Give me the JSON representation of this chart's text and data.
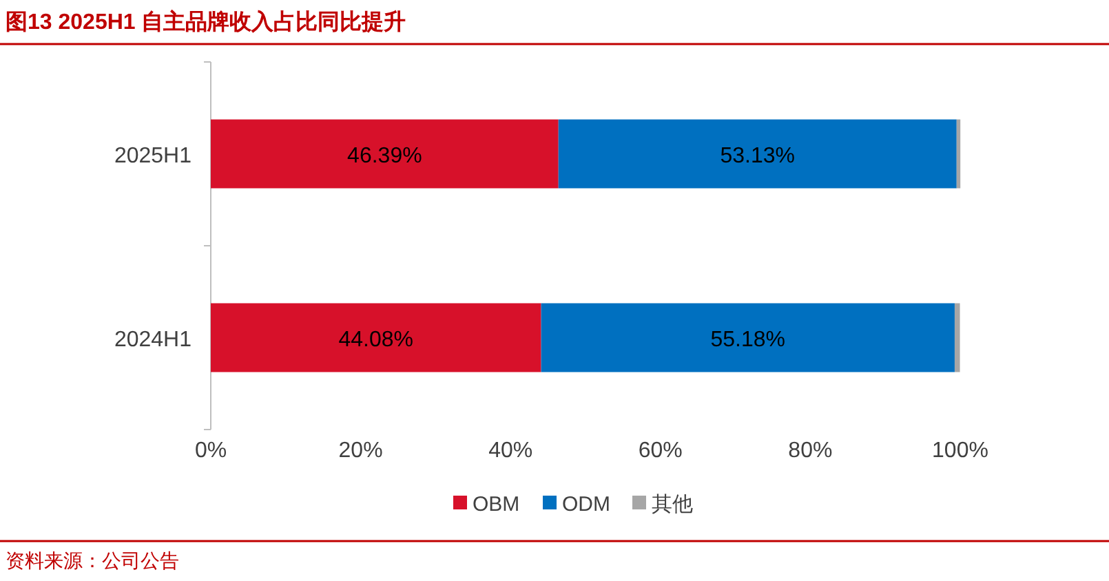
{
  "chart_data": {
    "type": "bar",
    "orientation": "horizontal",
    "stacked": true,
    "title": "图13  2025H1 自主品牌收入占比同比提升",
    "categories": [
      "2025H1",
      "2024H1"
    ],
    "series": [
      {
        "name": "OBM",
        "color": "#d7112a",
        "values": [
          46.39,
          44.08
        ],
        "value_labels": [
          "46.39%",
          "44.08%"
        ]
      },
      {
        "name": "ODM",
        "color": "#0070c0",
        "values": [
          53.13,
          55.18
        ],
        "value_labels": [
          "53.13%",
          "55.18%"
        ]
      },
      {
        "name": "其他",
        "color": "#a6a6a6",
        "values": [
          0.5,
          0.7
        ]
      }
    ],
    "xlim": [
      0,
      100
    ],
    "xticks": [
      {
        "value": 0,
        "label": "0%"
      },
      {
        "value": 20,
        "label": "20%"
      },
      {
        "value": 40,
        "label": "40%"
      },
      {
        "value": 60,
        "label": "60%"
      },
      {
        "value": 80,
        "label": "80%"
      },
      {
        "value": 100,
        "label": "100%"
      }
    ],
    "grid": false,
    "legend": "bottom",
    "annotations": [
      "资料来源：公司公告"
    ]
  }
}
